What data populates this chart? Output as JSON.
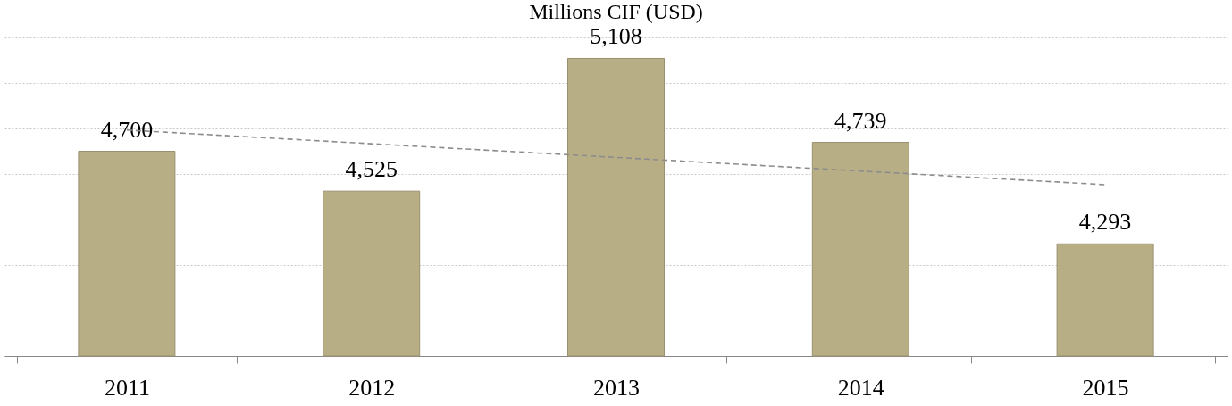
{
  "chart_data": {
    "type": "bar",
    "title": "Millions CIF (USD)",
    "categories": [
      "2011",
      "2012",
      "2013",
      "2014",
      "2015"
    ],
    "series": [
      {
        "color": "#b8ae86",
        "values": [
          4700,
          4525,
          5108,
          4739,
          4293
        ],
        "value_labels": [
          "4,700",
          "4,525",
          "5,108",
          "4,739",
          "4,293"
        ]
      },
      {
        "type": "line",
        "color": "#8c8c8c",
        "line_style": "dashed",
        "values": [
          4793,
          4733,
          4673,
          4613,
          4553
        ]
      }
    ],
    "ylim": [
      3800,
      5200
    ],
    "yticks": [
      {
        "value": 3800,
        "label": null
      },
      {
        "value": 4000,
        "label": null
      },
      {
        "value": 4200,
        "label": null
      },
      {
        "value": 4400,
        "label": null
      },
      {
        "value": 4600,
        "label": null
      },
      {
        "value": 4800,
        "label": null
      },
      {
        "value": 5000,
        "label": null
      },
      {
        "value": 5200,
        "label": null
      }
    ],
    "grid": "y",
    "tick_labels": "x"
  }
}
